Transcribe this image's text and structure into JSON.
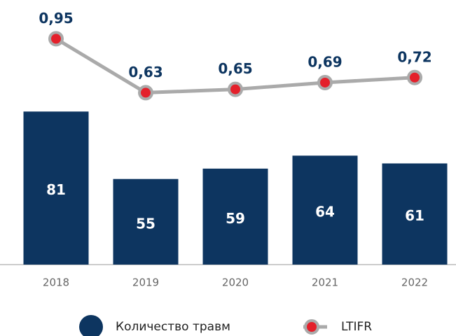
{
  "chart_data": {
    "type": "bar-line",
    "categories": [
      "2018",
      "2019",
      "2020",
      "2021",
      "2022"
    ],
    "series": [
      {
        "name": "Количество травм",
        "type": "bar",
        "color": "#0d3560",
        "values": [
          81,
          55,
          59,
          64,
          61
        ]
      },
      {
        "name": "LTIFR",
        "type": "line",
        "axis": "y2",
        "color": "#aaaaaa",
        "marker_color": "#e4202b",
        "values": [
          0.95,
          0.63,
          0.65,
          0.69,
          0.72
        ],
        "value_labels": [
          "0,95",
          "0,63",
          "0,65",
          "0,69",
          "0,72"
        ]
      }
    ],
    "ylim": [
      22,
      124
    ],
    "y2lim": [
      -0.39,
      1.18
    ]
  }
}
